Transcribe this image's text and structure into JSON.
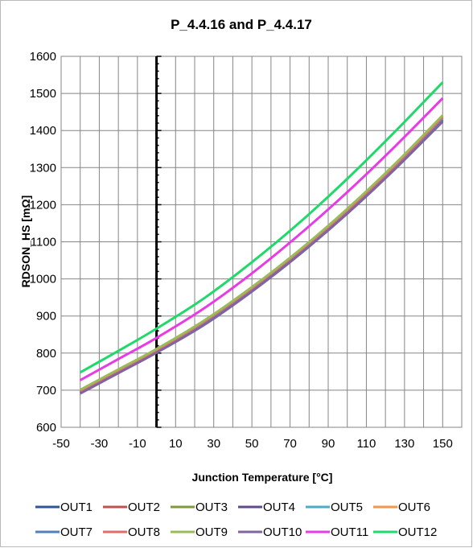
{
  "chart_data": {
    "type": "line",
    "title": "P_4.4.16 and P_4.4.17",
    "xlabel": "Junction Temperature  [°C]",
    "ylabel": "RDSON_HS [mΩ]",
    "xlim": [
      -50,
      160
    ],
    "ylim": [
      600,
      1600
    ],
    "xticks": [
      -50,
      -30,
      -10,
      10,
      30,
      50,
      70,
      90,
      110,
      130,
      150
    ],
    "yticks": [
      600,
      700,
      800,
      900,
      1000,
      1100,
      1200,
      1300,
      1400,
      1500,
      1600
    ],
    "grid": true,
    "legend_position": "bottom",
    "x": [
      -40,
      -20,
      0,
      25,
      50,
      75,
      100,
      125,
      150
    ],
    "series": [
      {
        "name": "OUT1",
        "color": "#2e5597",
        "values": [
          695,
          750,
          805,
          880,
          970,
          1070,
          1180,
          1300,
          1430
        ]
      },
      {
        "name": "OUT2",
        "color": "#c0504d",
        "values": [
          697,
          752,
          808,
          884,
          974,
          1074,
          1184,
          1305,
          1435
        ]
      },
      {
        "name": "OUT3",
        "color": "#7f9a3a",
        "values": [
          700,
          755,
          810,
          887,
          977,
          1077,
          1188,
          1309,
          1440
        ]
      },
      {
        "name": "OUT4",
        "color": "#5f4a8b",
        "values": [
          692,
          747,
          802,
          877,
          967,
          1067,
          1177,
          1297,
          1425
        ]
      },
      {
        "name": "OUT5",
        "color": "#4aacc6",
        "values": [
          696,
          751,
          806,
          882,
          972,
          1072,
          1182,
          1302,
          1432
        ]
      },
      {
        "name": "OUT6",
        "color": "#f79646",
        "values": [
          699,
          754,
          809,
          886,
          976,
          1076,
          1187,
          1308,
          1438
        ]
      },
      {
        "name": "OUT7",
        "color": "#4f81bd",
        "values": [
          694,
          749,
          804,
          879,
          969,
          1069,
          1179,
          1299,
          1428
        ]
      },
      {
        "name": "OUT8",
        "color": "#e06c6a",
        "values": [
          698,
          753,
          808,
          885,
          975,
          1075,
          1185,
          1306,
          1436
        ]
      },
      {
        "name": "OUT9",
        "color": "#9bbb59",
        "values": [
          701,
          756,
          811,
          888,
          978,
          1078,
          1189,
          1310,
          1441
        ]
      },
      {
        "name": "OUT10",
        "color": "#8064a2",
        "values": [
          691,
          746,
          801,
          876,
          966,
          1066,
          1176,
          1296,
          1424
        ]
      },
      {
        "name": "OUT11",
        "color": "#e63be6",
        "values": [
          727,
          784,
          841,
          921,
          1015,
          1120,
          1234,
          1357,
          1487
        ]
      },
      {
        "name": "OUT12",
        "color": "#1fd96a",
        "values": [
          748,
          806,
          866,
          948,
          1045,
          1152,
          1270,
          1397,
          1530
        ]
      }
    ]
  }
}
